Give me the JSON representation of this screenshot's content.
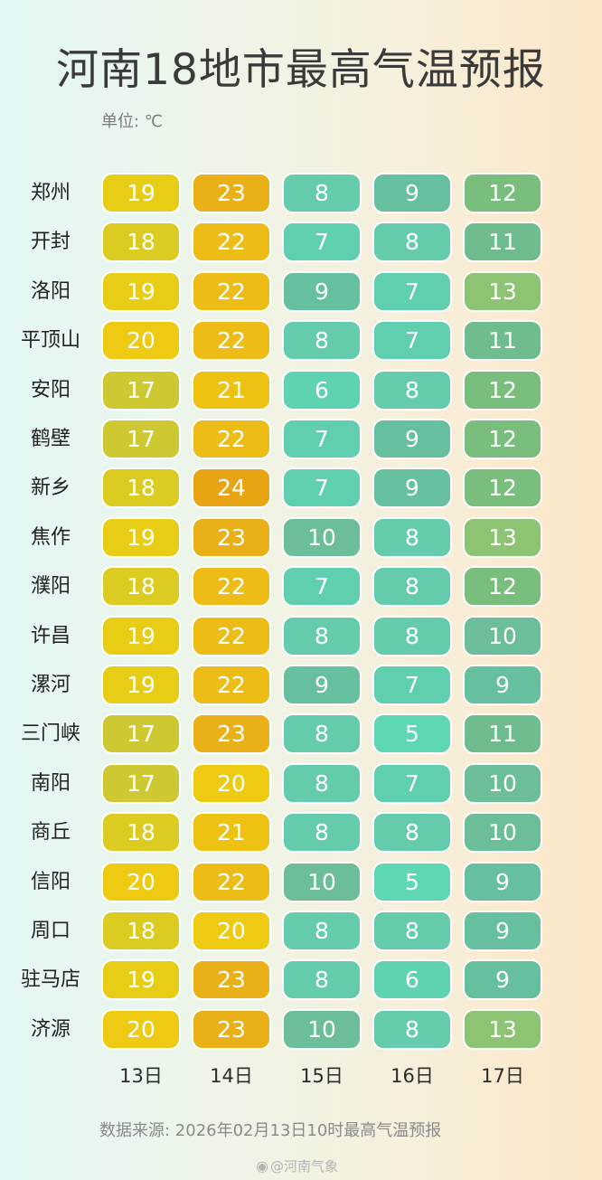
{
  "title": "河南18地市最高气温预报",
  "unit": "单位: ℃",
  "source": "数据来源: 2026年02月13日10时最高气温预报",
  "watermark": "@河南气象",
  "chart_data": {
    "type": "table",
    "title": "河南18地市最高气温预报",
    "unit": "单位: ℃",
    "columns": [
      "13日",
      "14日",
      "15日",
      "16日",
      "17日"
    ],
    "rows": [
      {
        "city": "郑州",
        "values": [
          19,
          23,
          8,
          9,
          12
        ]
      },
      {
        "city": "开封",
        "values": [
          18,
          22,
          7,
          8,
          11
        ]
      },
      {
        "city": "洛阳",
        "values": [
          19,
          22,
          9,
          7,
          13
        ]
      },
      {
        "city": "平顶山",
        "values": [
          20,
          22,
          8,
          7,
          11
        ]
      },
      {
        "city": "安阳",
        "values": [
          17,
          21,
          6,
          8,
          12
        ]
      },
      {
        "city": "鹤壁",
        "values": [
          17,
          22,
          7,
          9,
          12
        ]
      },
      {
        "city": "新乡",
        "values": [
          18,
          24,
          7,
          9,
          12
        ]
      },
      {
        "city": "焦作",
        "values": [
          19,
          23,
          10,
          8,
          13
        ]
      },
      {
        "city": "濮阳",
        "values": [
          18,
          22,
          7,
          8,
          12
        ]
      },
      {
        "city": "许昌",
        "values": [
          19,
          22,
          8,
          8,
          10
        ]
      },
      {
        "city": "漯河",
        "values": [
          19,
          22,
          9,
          7,
          9
        ]
      },
      {
        "city": "三门峡",
        "values": [
          17,
          23,
          8,
          5,
          11
        ]
      },
      {
        "city": "南阳",
        "values": [
          17,
          20,
          8,
          7,
          10
        ]
      },
      {
        "city": "商丘",
        "values": [
          18,
          21,
          8,
          8,
          10
        ]
      },
      {
        "city": "信阳",
        "values": [
          20,
          22,
          10,
          5,
          9
        ]
      },
      {
        "city": "周口",
        "values": [
          18,
          20,
          8,
          8,
          9
        ]
      },
      {
        "city": "驻马店",
        "values": [
          19,
          23,
          8,
          6,
          9
        ]
      },
      {
        "city": "济源",
        "values": [
          20,
          23,
          10,
          8,
          13
        ]
      }
    ],
    "color_scale": {
      "5": "#5dd7b4",
      "6": "#5fd2b1",
      "7": "#5fcfb0",
      "8": "#64cbad",
      "9": "#67c09d",
      "10": "#6bbe97",
      "11": "#6fbd8f",
      "12": "#79be7c",
      "13": "#8cc474",
      "17": "#cec932",
      "18": "#dccc22",
      "19": "#e7cd16",
      "20": "#eeca12",
      "21": "#eec213",
      "22": "#eebc17",
      "23": "#eab017",
      "24": "#e9a414"
    }
  }
}
